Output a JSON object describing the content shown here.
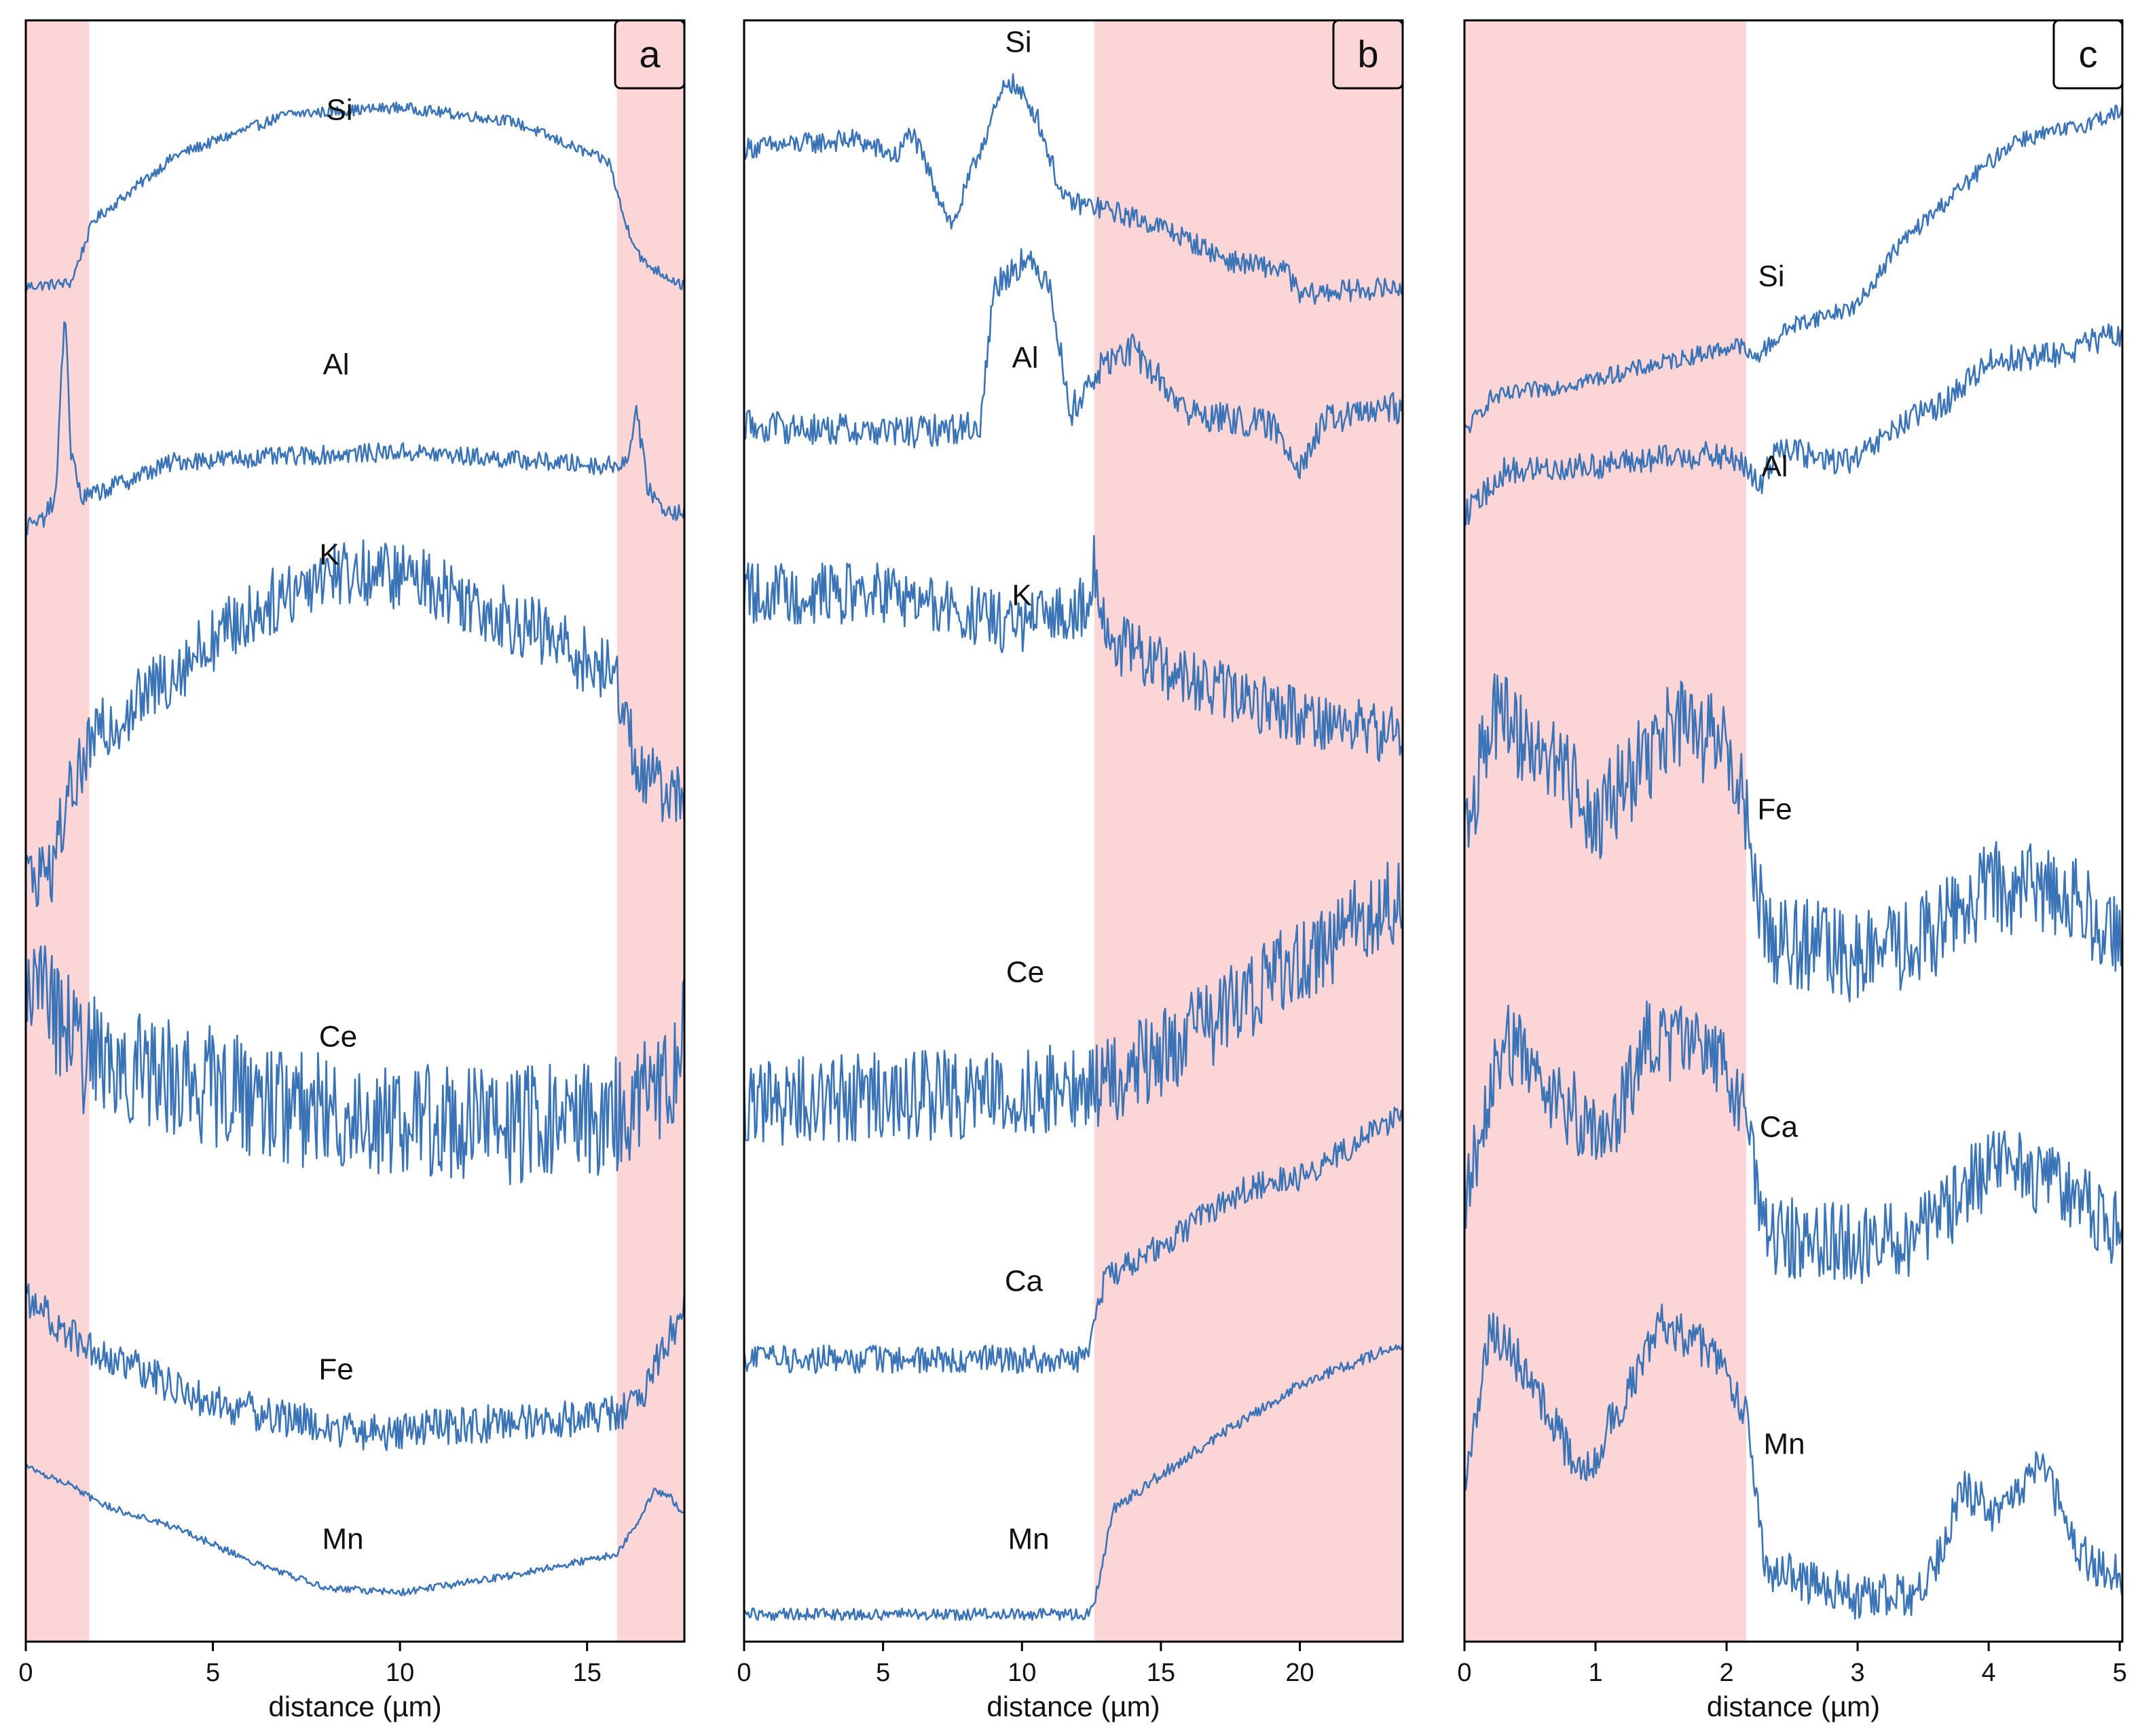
{
  "colors": {
    "line": "#3b74b6",
    "shade": "#fcd6d6",
    "frame": "#000000"
  },
  "chart_data": [
    {
      "type": "line",
      "panel_label": "a",
      "xlabel": "distance (µm)",
      "xlim": [
        0,
        17.6
      ],
      "xticks": [
        0,
        5,
        10,
        15
      ],
      "shaded_ranges": [
        [
          0,
          1.7
        ],
        [
          15.8,
          17.6
        ]
      ],
      "series": [
        {
          "name": "Si",
          "label_at": 8.8,
          "noise": 0.16,
          "points": [
            [
              0,
              0.05
            ],
            [
              1.2,
              0.1
            ],
            [
              1.5,
              0.55
            ],
            [
              1.8,
              1.0
            ],
            [
              4,
              1.95
            ],
            [
              7,
              2.55
            ],
            [
              10,
              2.65
            ],
            [
              13,
              2.45
            ],
            [
              15.6,
              1.85
            ],
            [
              16,
              1.0
            ],
            [
              16.5,
              0.4
            ],
            [
              17.6,
              0.05
            ]
          ]
        },
        {
          "name": "Al",
          "label_at": 8.2,
          "noise": 0.2,
          "points": [
            [
              0,
              0.1
            ],
            [
              0.4,
              0.15
            ],
            [
              0.8,
              0.4
            ],
            [
              1.05,
              2.5
            ],
            [
              1.2,
              0.9
            ],
            [
              1.5,
              0.4
            ],
            [
              4,
              0.8
            ],
            [
              10,
              0.9
            ],
            [
              15.5,
              0.75
            ],
            [
              16.1,
              0.8
            ],
            [
              16.3,
              1.4
            ],
            [
              16.6,
              0.55
            ],
            [
              17,
              0.3
            ],
            [
              17.6,
              0.25
            ]
          ]
        },
        {
          "name": "K",
          "label_at": 8.0,
          "noise": 0.5,
          "points": [
            [
              0,
              0.15
            ],
            [
              0.7,
              0.2
            ],
            [
              1.1,
              0.7
            ],
            [
              1.8,
              1.15
            ],
            [
              5,
              1.9
            ],
            [
              8,
              2.4
            ],
            [
              10.5,
              2.35
            ],
            [
              14,
              1.9
            ],
            [
              15.8,
              1.6
            ],
            [
              16.4,
              0.9
            ],
            [
              17.6,
              0.7
            ]
          ]
        },
        {
          "name": "Ce",
          "label_at": 8.2,
          "noise": 1.0,
          "points": [
            [
              0,
              2.5
            ],
            [
              1.5,
              1.8
            ],
            [
              4,
              1.6
            ],
            [
              8,
              1.3
            ],
            [
              13,
              1.2
            ],
            [
              16,
              1.3
            ],
            [
              17.3,
              1.6
            ],
            [
              17.6,
              2.2
            ]
          ]
        },
        {
          "name": "Fe",
          "label_at": 8.2,
          "noise": 0.7,
          "points": [
            [
              0,
              3.0
            ],
            [
              1.7,
              2.1
            ],
            [
              5,
              1.1
            ],
            [
              9,
              0.55
            ],
            [
              12,
              0.7
            ],
            [
              15.8,
              0.9
            ],
            [
              16.5,
              1.3
            ],
            [
              17.4,
              2.6
            ],
            [
              17.6,
              3.2
            ]
          ]
        },
        {
          "name": "Mn",
          "label_at": 8.4,
          "noise": 0.15,
          "points": [
            [
              0,
              2.8
            ],
            [
              1.3,
              2.4
            ],
            [
              1.9,
              2.05
            ],
            [
              4,
              1.55
            ],
            [
              6,
              0.85
            ],
            [
              8,
              0.3
            ],
            [
              10,
              0.2
            ],
            [
              13,
              0.55
            ],
            [
              15.8,
              1.0
            ],
            [
              16.3,
              1.6
            ],
            [
              16.8,
              2.3
            ],
            [
              17.2,
              2.2
            ],
            [
              17.6,
              1.8
            ]
          ]
        }
      ]
    },
    {
      "type": "line",
      "panel_label": "b",
      "xlabel": "distance (µm)",
      "xlim": [
        0,
        23.7
      ],
      "xticks": [
        0,
        5,
        10,
        15,
        20
      ],
      "shaded_ranges": [
        [
          12.6,
          23.7
        ]
      ],
      "series": [
        {
          "name": "Si",
          "label_at": 9.9,
          "noise": 0.25,
          "points": [
            [
              0,
              2.2
            ],
            [
              4,
              2.3
            ],
            [
              5.5,
              2.1
            ],
            [
              6,
              2.4
            ],
            [
              7.5,
              1.3
            ],
            [
              8.5,
              2.2
            ],
            [
              9.5,
              3.0
            ],
            [
              10.5,
              2.6
            ],
            [
              11.5,
              1.6
            ],
            [
              13,
              1.5
            ],
            [
              15,
              1.3
            ],
            [
              17.5,
              0.9
            ],
            [
              19.5,
              0.8
            ],
            [
              20,
              0.5
            ],
            [
              21,
              0.55
            ],
            [
              23.7,
              0.6
            ]
          ]
        },
        {
          "name": "Al",
          "label_at": 10.0,
          "noise": 0.25,
          "points": [
            [
              0,
              0.6
            ],
            [
              6,
              0.55
            ],
            [
              8.5,
              0.6
            ],
            [
              9,
              1.7
            ],
            [
              10,
              1.9
            ],
            [
              11,
              1.75
            ],
            [
              11.7,
              0.7
            ],
            [
              13,
              1.1
            ],
            [
              14,
              1.2
            ],
            [
              16,
              0.7
            ],
            [
              19,
              0.6
            ],
            [
              20,
              0.3
            ],
            [
              21,
              0.65
            ],
            [
              23.7,
              0.75
            ]
          ]
        },
        {
          "name": "K",
          "label_at": 10.0,
          "noise": 0.55,
          "points": [
            [
              0,
              2.0
            ],
            [
              5,
              2.0
            ],
            [
              8,
              1.8
            ],
            [
              10,
              1.7
            ],
            [
              12.3,
              1.9
            ],
            [
              12.6,
              2.3
            ],
            [
              13,
              1.6
            ],
            [
              16,
              1.2
            ],
            [
              20,
              0.9
            ],
            [
              23.7,
              0.7
            ]
          ]
        },
        {
          "name": "Ce",
          "label_at": 10.0,
          "noise": 0.7,
          "points": [
            [
              0,
              0.4
            ],
            [
              12.6,
              0.5
            ],
            [
              16,
              0.9
            ],
            [
              20,
              1.5
            ],
            [
              23.7,
              2.0
            ]
          ]
        },
        {
          "name": "Ca",
          "label_at": 10.0,
          "noise": 0.22,
          "points": [
            [
              0,
              0.15
            ],
            [
              12.3,
              0.15
            ],
            [
              13,
              0.8
            ],
            [
              16,
              1.2
            ],
            [
              18,
              1.5
            ],
            [
              20,
              1.6
            ],
            [
              23.7,
              2.1
            ]
          ]
        },
        {
          "name": "Mn",
          "label_at": 10.0,
          "noise": 0.1,
          "points": [
            [
              0,
              0.1
            ],
            [
              12.4,
              0.1
            ],
            [
              12.6,
              0.2
            ],
            [
              13.3,
              1.0
            ],
            [
              16,
              1.45
            ],
            [
              18,
              1.75
            ],
            [
              20,
              2.05
            ],
            [
              23.7,
              2.4
            ]
          ]
        }
      ]
    },
    {
      "type": "line",
      "panel_label": "c",
      "xlabel": "distance (µm)",
      "xlim": [
        0,
        5.02
      ],
      "xticks": [
        0,
        1,
        2,
        3,
        4,
        5
      ],
      "shaded_ranges": [
        [
          0,
          2.15
        ]
      ],
      "series": [
        {
          "name": "Si",
          "label_at": 2.28,
          "noise": 0.18,
          "points": [
            [
              0,
              0.0
            ],
            [
              0.2,
              0.35
            ],
            [
              1,
              0.55
            ],
            [
              2.1,
              0.9
            ],
            [
              2.2,
              0.75
            ],
            [
              2.5,
              1.1
            ],
            [
              3,
              1.3
            ],
            [
              3.3,
              1.9
            ],
            [
              3.7,
              2.4
            ],
            [
              4.2,
              3.0
            ],
            [
              4.6,
              3.1
            ],
            [
              5.02,
              3.3
            ]
          ]
        },
        {
          "name": "Al",
          "label_at": 2.28,
          "noise": 0.5,
          "points": [
            [
              0,
              0.2
            ],
            [
              0.3,
              1.0
            ],
            [
              1,
              1.1
            ],
            [
              1.8,
              1.3
            ],
            [
              2.1,
              1.2
            ],
            [
              2.25,
              0.7
            ],
            [
              2.4,
              1.5
            ],
            [
              2.7,
              1.2
            ],
            [
              3.0,
              1.2
            ],
            [
              3.3,
              1.8
            ],
            [
              3.7,
              2.3
            ],
            [
              4.0,
              3.0
            ],
            [
              4.5,
              3.1
            ],
            [
              5.02,
              3.5
            ]
          ]
        },
        {
          "name": "Fe",
          "label_at": 2.28,
          "noise": 0.8,
          "points": [
            [
              0,
              1.4
            ],
            [
              0.2,
              2.5
            ],
            [
              0.7,
              2.1
            ],
            [
              1.0,
              1.6
            ],
            [
              1.6,
              2.4
            ],
            [
              2.0,
              2.2
            ],
            [
              2.15,
              1.6
            ],
            [
              2.3,
              0.6
            ],
            [
              3.0,
              0.4
            ],
            [
              3.5,
              0.55
            ],
            [
              4.0,
              1.0
            ],
            [
              4.5,
              1.0
            ],
            [
              5.02,
              0.6
            ]
          ]
        },
        {
          "name": "Ca",
          "label_at": 2.28,
          "noise": 0.7,
          "points": [
            [
              0,
              0.9
            ],
            [
              0.3,
              2.3
            ],
            [
              0.8,
              1.7
            ],
            [
              1.1,
              1.4
            ],
            [
              1.4,
              2.3
            ],
            [
              1.9,
              2.2
            ],
            [
              2.15,
              1.7
            ],
            [
              2.3,
              0.6
            ],
            [
              3.0,
              0.5
            ],
            [
              3.5,
              0.6
            ],
            [
              4.0,
              1.2
            ],
            [
              4.5,
              1.1
            ],
            [
              5.02,
              0.6
            ]
          ]
        },
        {
          "name": "Mn",
          "label_at": 2.28,
          "noise": 0.35,
          "points": [
            [
              0,
              1.3
            ],
            [
              0.2,
              2.5
            ],
            [
              0.5,
              2.1
            ],
            [
              0.9,
              1.3
            ],
            [
              1.2,
              1.9
            ],
            [
              1.5,
              2.5
            ],
            [
              1.9,
              2.3
            ],
            [
              2.15,
              1.8
            ],
            [
              2.3,
              0.6
            ],
            [
              3.0,
              0.35
            ],
            [
              3.5,
              0.4
            ],
            [
              3.8,
              1.2
            ],
            [
              4.1,
              1.0
            ],
            [
              4.4,
              1.4
            ],
            [
              4.7,
              0.7
            ],
            [
              5.02,
              0.5
            ]
          ]
        }
      ]
    }
  ]
}
